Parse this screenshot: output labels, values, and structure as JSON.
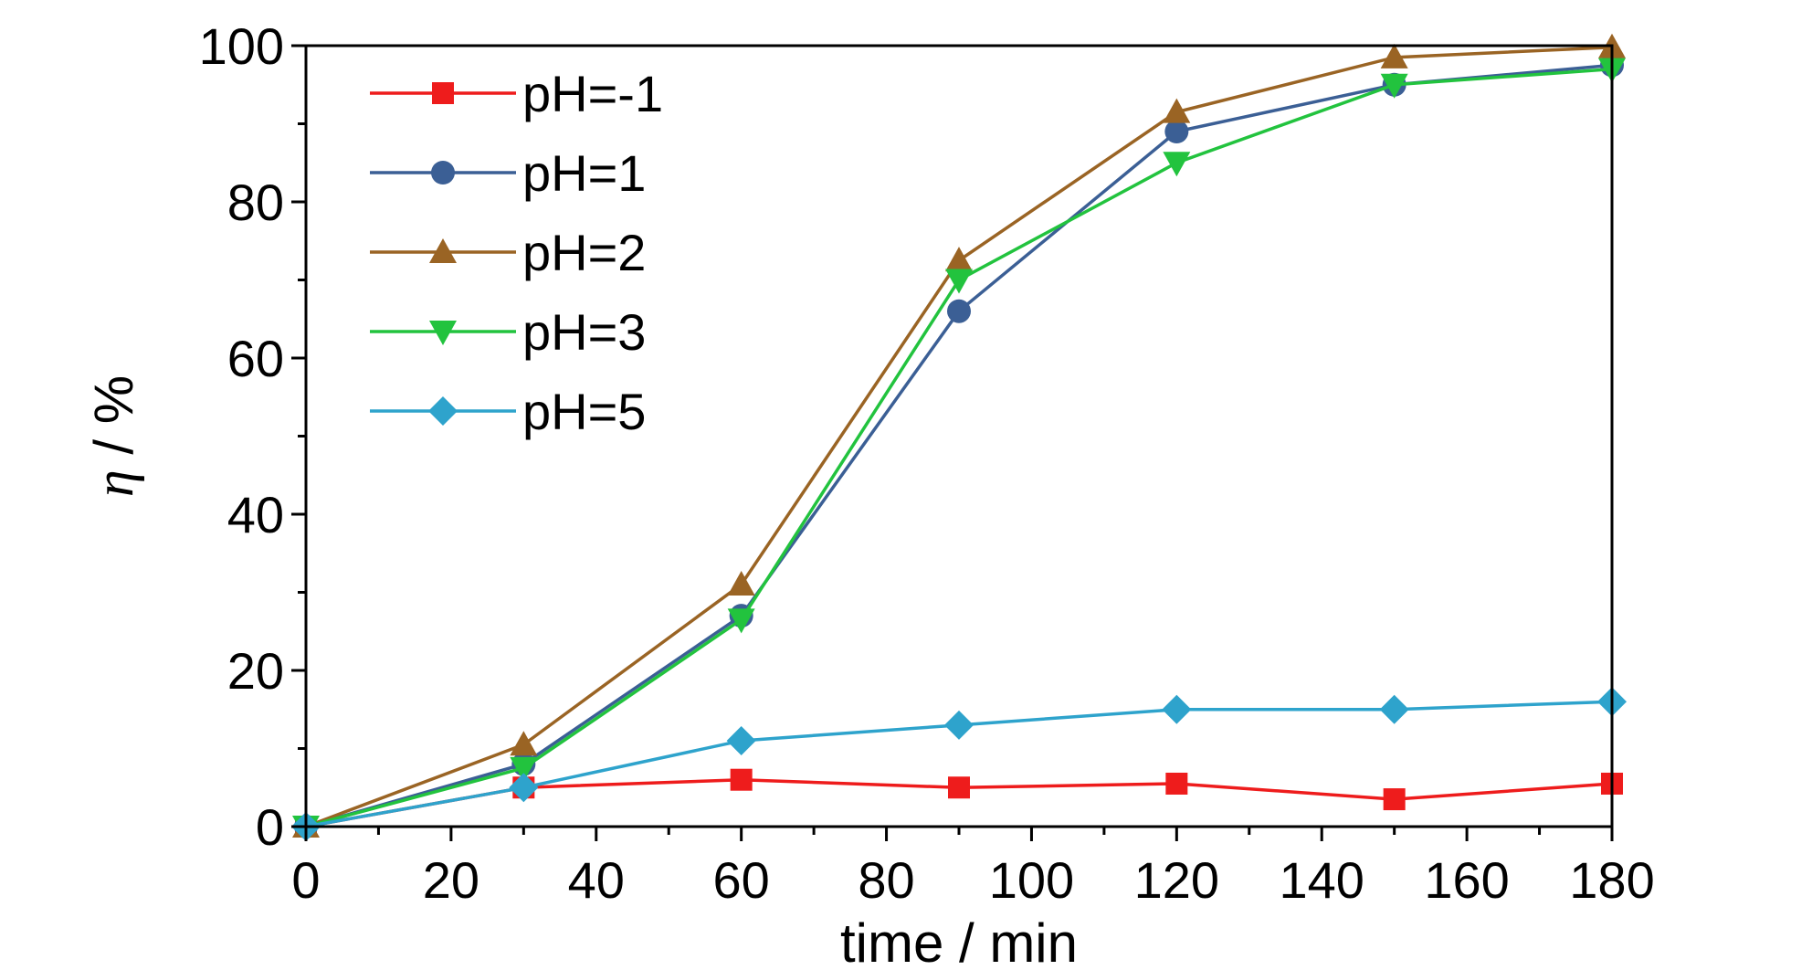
{
  "chart_data": {
    "type": "line",
    "xlabel": "time / min",
    "ylabel_symbol": "η",
    "ylabel_rest": " / %",
    "xlim": [
      0,
      180
    ],
    "ylim": [
      0,
      100
    ],
    "xticks": [
      "0",
      "20",
      "40",
      "60",
      "80",
      "100",
      "120",
      "140",
      "160",
      "180"
    ],
    "yticks": [
      "0",
      "20",
      "40",
      "60",
      "80",
      "100"
    ],
    "grid": false,
    "legend_placement": "top-left",
    "series": [
      {
        "name": "pH=-1",
        "color": "#ee1c1c",
        "marker": "square",
        "x": [
          0,
          30,
          60,
          90,
          120,
          150,
          180
        ],
        "y": [
          0,
          5,
          6,
          5,
          5.5,
          3.5,
          5.5
        ]
      },
      {
        "name": "pH=1",
        "color": "#3b5f95",
        "marker": "circle",
        "x": [
          0,
          30,
          60,
          90,
          120,
          150,
          180
        ],
        "y": [
          0,
          8,
          27,
          66,
          89,
          95,
          97.5
        ]
      },
      {
        "name": "pH=2",
        "color": "#9a6424",
        "marker": "triangle-up",
        "x": [
          0,
          30,
          60,
          90,
          120,
          150,
          180
        ],
        "y": [
          0,
          10.5,
          31,
          72.5,
          91.5,
          98.5,
          99.8
        ]
      },
      {
        "name": "pH=3",
        "color": "#22c33e",
        "marker": "triangle-down",
        "x": [
          0,
          30,
          60,
          90,
          120,
          150,
          180
        ],
        "y": [
          0,
          7.5,
          26.5,
          70,
          85,
          95,
          97
        ]
      },
      {
        "name": "pH=5",
        "color": "#2ea3cc",
        "marker": "diamond",
        "x": [
          0,
          30,
          60,
          90,
          120,
          150,
          180
        ],
        "y": [
          0,
          5,
          11,
          13,
          15,
          15,
          16
        ]
      }
    ]
  }
}
